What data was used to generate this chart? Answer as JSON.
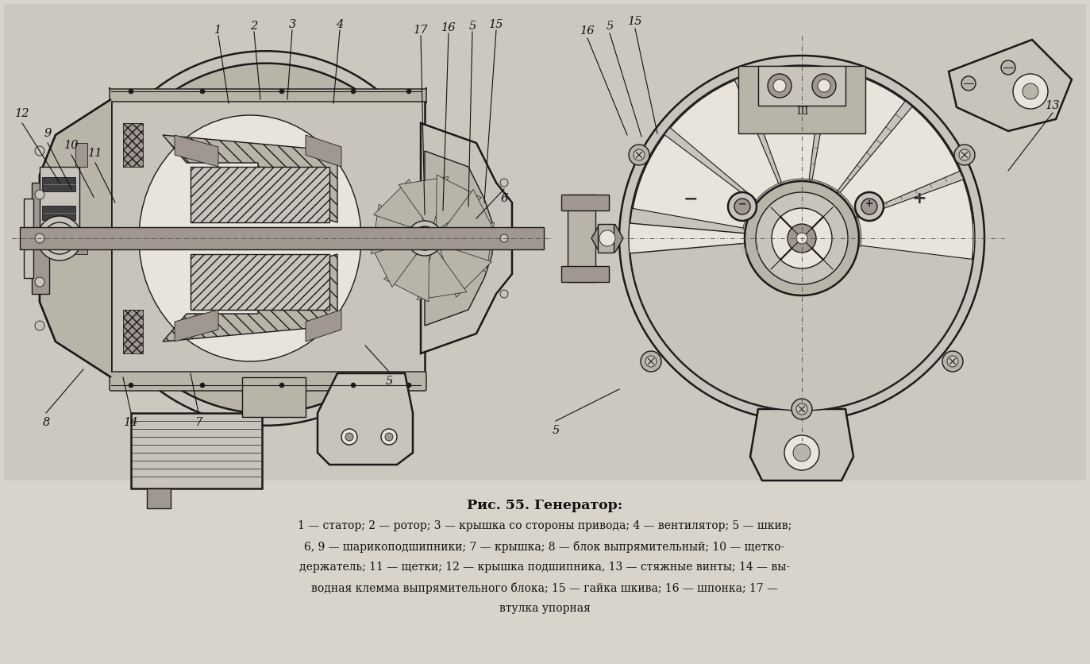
{
  "background_color": "#d8d4cc",
  "figure_width": 13.73,
  "figure_height": 8.36,
  "dpi": 100,
  "title": "Рис. 55. Генератор:",
  "title_fontsize": 12.5,
  "caption_lines": [
    "1 — статор; 2 — ротор; 3 — крышка со стороны привода; 4 — вентилятор; 5 — шкив;",
    "6, 9 — шарикоподшипники; 7 — крышка; 8 — блок выпрямительный; 10 — щетко-",
    "держатель; 11 — щетки; 12 — крышка подшипника, 13 — стяжные винты; 14 — вы-",
    "водная клемма выпрямительного блока; 15 — гайка шкива; 16 — шпонка; 17 —",
    "втулка упорная"
  ],
  "caption_fontsize": 10,
  "lc": "#1a1a1a",
  "lw": 1.0,
  "lw_thick": 1.8,
  "lw_thin": 0.6,
  "fill_light": "#c8c4bc",
  "fill_medium": "#b8b4a8",
  "fill_dark": "#a09890",
  "fill_hatch": "#d0ccc4",
  "fill_white": "#e8e4dc",
  "fill_bg": "#ccc8c0"
}
